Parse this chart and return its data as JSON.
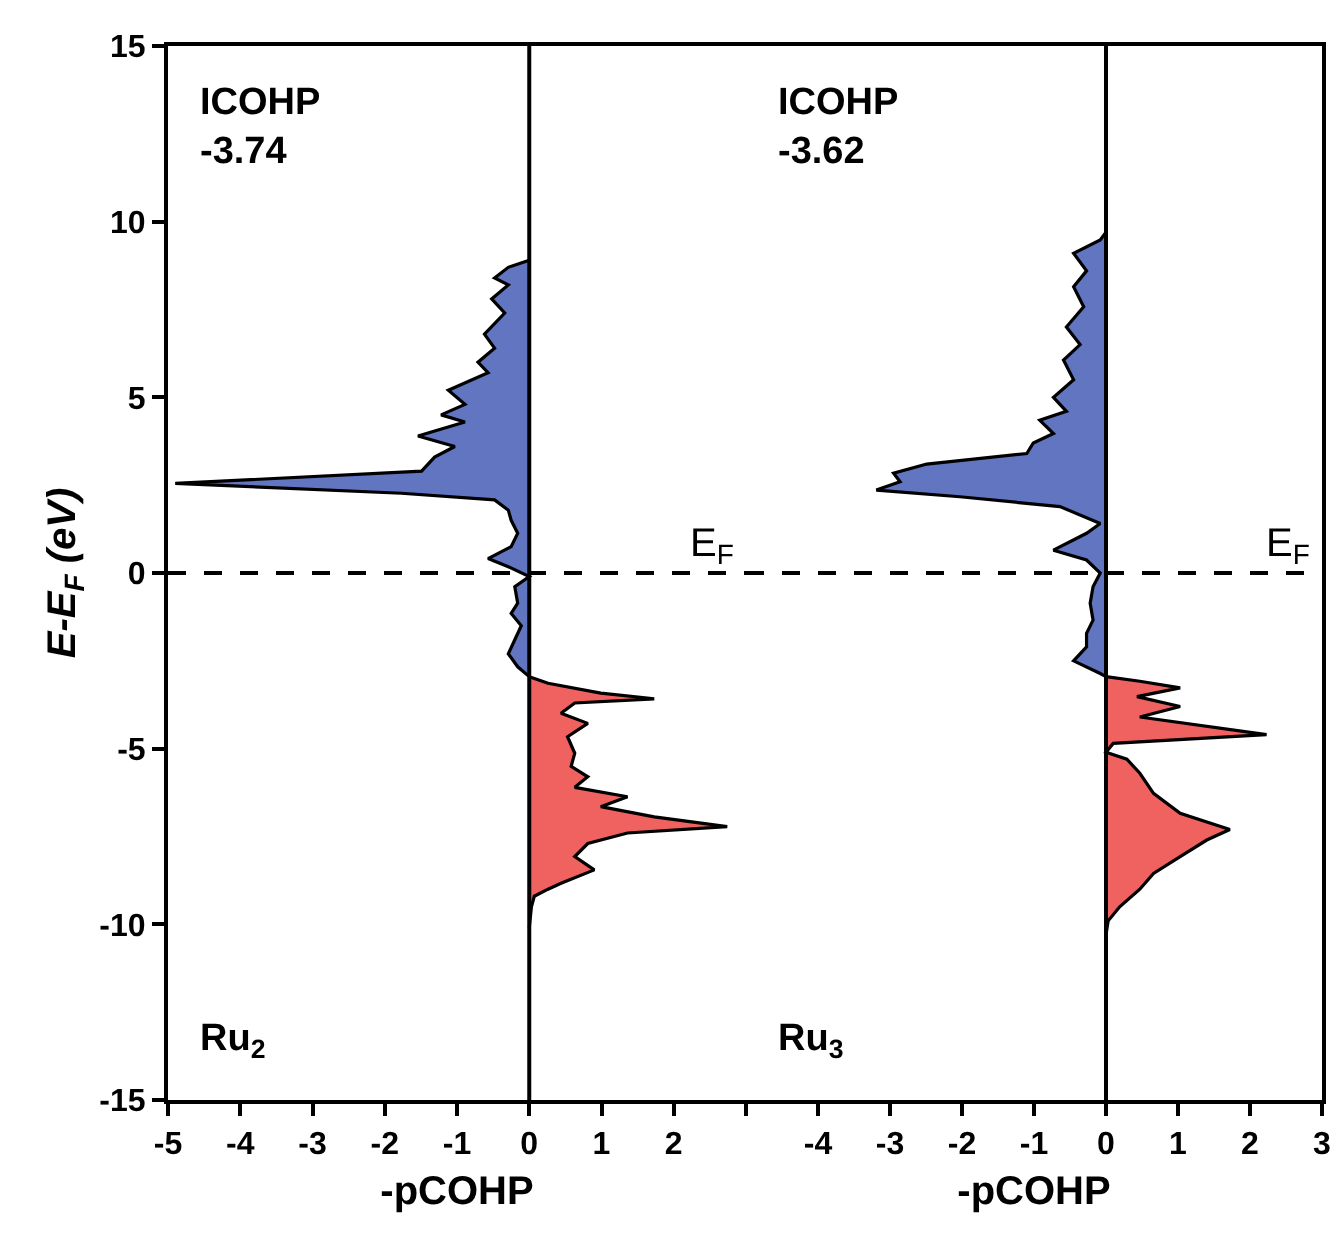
{
  "chart_data": [
    {
      "type": "area",
      "xlabel": "-pCOHP",
      "ylabel": "E-E$_{F}$ (eV)",
      "xlim": [
        -5,
        3
      ],
      "xticks": [
        -5,
        -4,
        -3,
        -2,
        -1,
        0,
        1,
        2,
        {
          "value": 3,
          "label": null
        }
      ],
      "ylim": [
        -15,
        15
      ],
      "yticks": [
        -15,
        -10,
        -5,
        0,
        5,
        10,
        15
      ],
      "grid": false,
      "annotations": [
        "ICOHP\n-3.74",
        "Ru$_{2}$"
      ],
      "ref_lines": [
        {
          "axis": "x",
          "value": 0,
          "line_style": "solid"
        },
        {
          "axis": "y",
          "value": 0,
          "label": "E$_{F}$",
          "line_style": "dashed"
        }
      ],
      "series": [
        {
          "color": "#6275c0",
          "x": [
            0,
            -0.29,
            -0.48,
            -0.29,
            -0.52,
            -0.34,
            -0.62,
            -0.48,
            -0.71,
            -0.57,
            -1.12,
            -0.89,
            -1.22,
            -0.89,
            -1.54,
            -1.03,
            -1.31,
            -1.49,
            -4.9,
            -1.77,
            -0.48,
            -0.29,
            -0.25,
            -0.16,
            -0.25,
            -0.57,
            -0.29,
            0,
            -0.2,
            -0.16,
            -0.25,
            -0.11,
            -0.2,
            -0.29,
            -0.16,
            0
          ],
          "values": [
            8.9,
            8.7,
            8.4,
            8.2,
            7.8,
            7.4,
            6.8,
            6.4,
            6.0,
            5.7,
            5.2,
            4.8,
            4.5,
            4.3,
            3.9,
            3.6,
            3.3,
            2.9,
            2.55,
            2.27,
            2.08,
            1.79,
            1.5,
            1.13,
            0.75,
            0.41,
            0.18,
            -0.1,
            -0.39,
            -0.86,
            -1.15,
            -1.5,
            -1.9,
            -2.3,
            -2.67,
            -2.95
          ]
        },
        {
          "color": "#f0625f",
          "x": [
            0,
            0.26,
            0.99,
            1.73,
            0.63,
            0.44,
            0.81,
            0.53,
            0.63,
            0.58,
            0.81,
            0.63,
            1.36,
            0.99,
            1.73,
            2.74,
            1.36,
            0.81,
            0.63,
            0.9,
            0.44,
            0.26,
            0.07,
            0.03,
            0
          ],
          "values": [
            -2.95,
            -3.14,
            -3.42,
            -3.58,
            -3.7,
            -3.99,
            -4.28,
            -4.66,
            -5.13,
            -5.5,
            -5.8,
            -6.1,
            -6.37,
            -6.65,
            -6.94,
            -7.22,
            -7.4,
            -7.7,
            -8.07,
            -8.45,
            -8.83,
            -9.0,
            -9.2,
            -9.5,
            -10.1
          ]
        }
      ]
    },
    {
      "type": "area",
      "xlabel": "-pCOHP",
      "xlim": [
        -5,
        3
      ],
      "xticks": [
        {
          "value": -5,
          "label": null
        },
        -4,
        -3,
        -2,
        -1,
        0,
        1,
        2,
        3
      ],
      "ylim": [
        -15,
        15
      ],
      "yticks": [
        -15,
        -10,
        -5,
        0,
        5,
        10,
        15
      ],
      "tick_labels": "x",
      "grid": false,
      "annotations": [
        "ICOHP\n-3.62",
        "Ru$_{3}$"
      ],
      "ref_lines": [
        {
          "axis": "x",
          "value": 0,
          "line_style": "solid"
        },
        {
          "axis": "y",
          "value": 0,
          "label": "E$_{F}$",
          "line_style": "dashed"
        }
      ],
      "series": [
        {
          "color": "#6275c0",
          "x": [
            0,
            -0.08,
            -0.45,
            -0.27,
            -0.45,
            -0.31,
            -0.55,
            -0.36,
            -0.59,
            -0.45,
            -0.73,
            -0.55,
            -0.92,
            -0.73,
            -1.01,
            -1.1,
            -2.49,
            -2.95,
            -2.86,
            -3.19,
            -2.03,
            -0.64,
            -0.08,
            -0.27,
            -0.73,
            -0.27,
            -0.08,
            -0.18,
            -0.22,
            -0.18,
            -0.27,
            -0.27,
            -0.45,
            -0.08,
            0
          ],
          "values": [
            9.7,
            9.48,
            9.1,
            8.6,
            8.15,
            7.58,
            7.0,
            6.5,
            6.06,
            5.5,
            5.0,
            4.6,
            4.35,
            3.97,
            3.7,
            3.4,
            3.1,
            2.84,
            2.6,
            2.36,
            2.17,
            1.89,
            1.41,
            1.13,
            0.65,
            0.37,
            0,
            -0.39,
            -0.86,
            -1.34,
            -1.72,
            -2.1,
            -2.5,
            -2.86,
            -2.95
          ]
        },
        {
          "color": "#f0625f",
          "x": [
            0,
            0.47,
            1.03,
            0.43,
            1.03,
            0.47,
            2.23,
            0.1,
            0,
            0.29,
            0.47,
            0.66,
            1.03,
            1.72,
            1.4,
            1.03,
            0.66,
            0.47,
            0.19,
            0.03,
            0
          ],
          "values": [
            -2.95,
            -3.08,
            -3.27,
            -3.52,
            -3.8,
            -4.1,
            -4.6,
            -4.85,
            -5.1,
            -5.3,
            -5.7,
            -6.27,
            -6.84,
            -7.3,
            -7.6,
            -8.07,
            -8.55,
            -9.0,
            -9.5,
            -9.9,
            -10.3
          ]
        }
      ]
    }
  ]
}
